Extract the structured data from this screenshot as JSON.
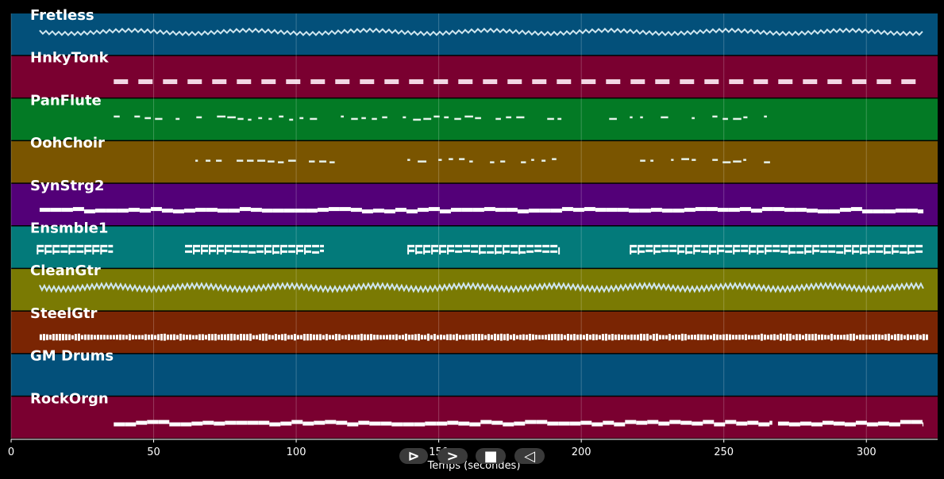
{
  "tracks": [
    {
      "name": "Fretless",
      "color": "#03507a",
      "notes": [
        [
          10,
          320
        ]
      ],
      "style": "wave"
    },
    {
      "name": "HnkyTonk",
      "color": "#7a0030",
      "notes": [
        [
          36,
          320
        ]
      ],
      "style": "dash"
    },
    {
      "name": "PanFlute",
      "color": "#037a25",
      "notes": [
        [
          36,
          267
        ]
      ],
      "style": "sparse"
    },
    {
      "name": "OohChoir",
      "color": "#7a5500",
      "notes": [
        [
          61,
          114
        ],
        [
          139,
          192
        ],
        [
          217,
          267
        ]
      ],
      "style": "sparse"
    },
    {
      "name": "SynStrg2",
      "color": "#530078",
      "notes": [
        [
          10,
          320
        ]
      ],
      "style": "solid"
    },
    {
      "name": "Ensmble1",
      "color": "#037a7a",
      "notes": [
        [
          9,
          36
        ],
        [
          61,
          110
        ],
        [
          139,
          192
        ],
        [
          217,
          320
        ]
      ],
      "style": "block"
    },
    {
      "name": "CleanGtr",
      "color": "#7a7a03",
      "notes": [
        [
          10,
          320
        ]
      ],
      "style": "zigzag"
    },
    {
      "name": "SteelGtr",
      "color": "#7a2503",
      "notes": [
        [
          10,
          321
        ]
      ],
      "style": "dense"
    },
    {
      "name": "GM Drums",
      "color": "#03507a",
      "notes": [],
      "style": "none"
    },
    {
      "name": "RockOrgn",
      "color": "#7a0030",
      "notes": [
        [
          36,
          267
        ],
        [
          269,
          320
        ]
      ],
      "style": "solid"
    }
  ],
  "xaxis": {
    "label": "Temps (secondes)",
    "ticks": [
      0,
      50,
      100,
      150,
      200,
      250,
      300
    ],
    "min": 0,
    "max": 325
  },
  "controls": [
    {
      "name": "play-button",
      "icon": "play-icon",
      "glyph": "⊳"
    },
    {
      "name": "forward-button",
      "icon": "forward-icon",
      "glyph": ">"
    },
    {
      "name": "stop-button",
      "icon": "stop-icon",
      "glyph": "■"
    },
    {
      "name": "rewind-button",
      "icon": "rewind-icon",
      "glyph": "◁"
    }
  ]
}
